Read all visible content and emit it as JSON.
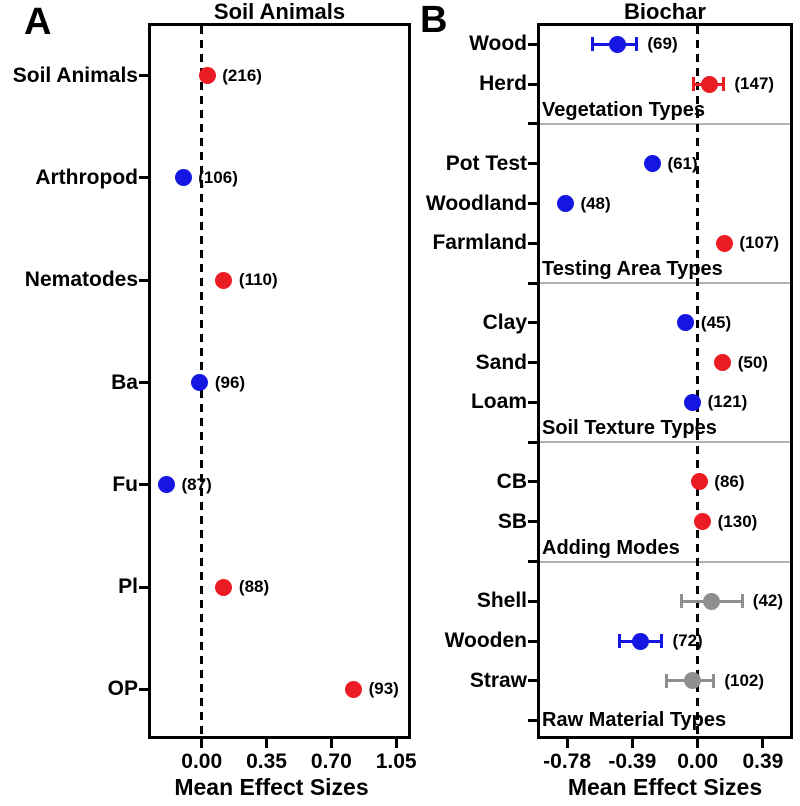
{
  "colors": {
    "red": "#ec1c24",
    "blue": "#1616e3",
    "gray": "#8f8f8f",
    "separator": "#b3b3b3",
    "axis": "#000000"
  },
  "chart_data": [
    {
      "panel_label": "A",
      "type": "scatter",
      "subtype": "forest-dot-plot",
      "title": "Soil Animals",
      "xlabel": "Mean Effect Sizes",
      "xlim": [
        -0.29,
        1.13
      ],
      "x_ticks": [
        {
          "v": 0.0,
          "label": "0.00"
        },
        {
          "v": 0.35,
          "label": "0.35"
        },
        {
          "v": 0.7,
          "label": "0.70"
        },
        {
          "v": 1.05,
          "label": "1.05"
        }
      ],
      "zero_line_at": 0,
      "grid": false,
      "rows": [
        {
          "label": "Soil Animals",
          "value": 0.03,
          "n": 216,
          "color": "red"
        },
        {
          "label": "Arthropod",
          "value": -0.1,
          "n": 106,
          "color": "blue"
        },
        {
          "label": "Nematodes",
          "value": 0.12,
          "n": 110,
          "color": "red"
        },
        {
          "label": "Ba",
          "value": -0.01,
          "n": 96,
          "color": "blue"
        },
        {
          "label": "Fu",
          "value": -0.19,
          "n": 87,
          "color": "blue"
        },
        {
          "label": "Pl",
          "value": 0.12,
          "n": 88,
          "color": "red"
        },
        {
          "label": "OP",
          "value": 0.82,
          "n": 93,
          "color": "red"
        }
      ]
    },
    {
      "panel_label": "B",
      "type": "scatter",
      "subtype": "forest-dot-plot",
      "title": "Biochar",
      "xlabel": "Mean Effect Sizes",
      "xlim": [
        -0.96,
        0.57
      ],
      "x_ticks": [
        {
          "v": -0.78,
          "label": "-0.78"
        },
        {
          "v": -0.39,
          "label": "-0.39"
        },
        {
          "v": 0.0,
          "label": "0.00"
        },
        {
          "v": 0.39,
          "label": "0.39"
        }
      ],
      "zero_line_at": 0,
      "grid": false,
      "rows": [
        {
          "label": "Wood",
          "value": -0.48,
          "ci": [
            -0.63,
            -0.36
          ],
          "n": 69,
          "color": "blue"
        },
        {
          "label": "Herd",
          "value": 0.07,
          "ci": [
            -0.03,
            0.16
          ],
          "n": 147,
          "color": "red"
        },
        {
          "section": "Vegetation Types"
        },
        {
          "label": "Pot Test",
          "value": -0.27,
          "n": 61,
          "color": "blue"
        },
        {
          "label": "Woodland",
          "value": -0.79,
          "n": 48,
          "color": "blue"
        },
        {
          "label": "Farmland",
          "value": 0.16,
          "n": 107,
          "color": "red"
        },
        {
          "section": "Testing Area Types"
        },
        {
          "label": "Clay",
          "value": -0.07,
          "n": 45,
          "color": "blue"
        },
        {
          "label": "Sand",
          "value": 0.15,
          "n": 50,
          "color": "red"
        },
        {
          "label": "Loam",
          "value": -0.03,
          "n": 121,
          "color": "blue"
        },
        {
          "section": "Soil Texture Types"
        },
        {
          "label": "CB",
          "value": 0.01,
          "n": 86,
          "color": "red"
        },
        {
          "label": "SB",
          "value": 0.03,
          "n": 130,
          "color": "red"
        },
        {
          "section": "Adding Modes"
        },
        {
          "label": "Shell",
          "value": 0.08,
          "ci": [
            -0.1,
            0.27
          ],
          "n": 42,
          "color": "gray"
        },
        {
          "label": "Wooden",
          "value": -0.34,
          "ci": [
            -0.47,
            -0.21
          ],
          "n": 72,
          "color": "blue"
        },
        {
          "label": "Straw",
          "value": -0.03,
          "ci": [
            -0.19,
            0.1
          ],
          "n": 102,
          "color": "gray"
        },
        {
          "section": "Raw Material Types"
        }
      ]
    }
  ]
}
